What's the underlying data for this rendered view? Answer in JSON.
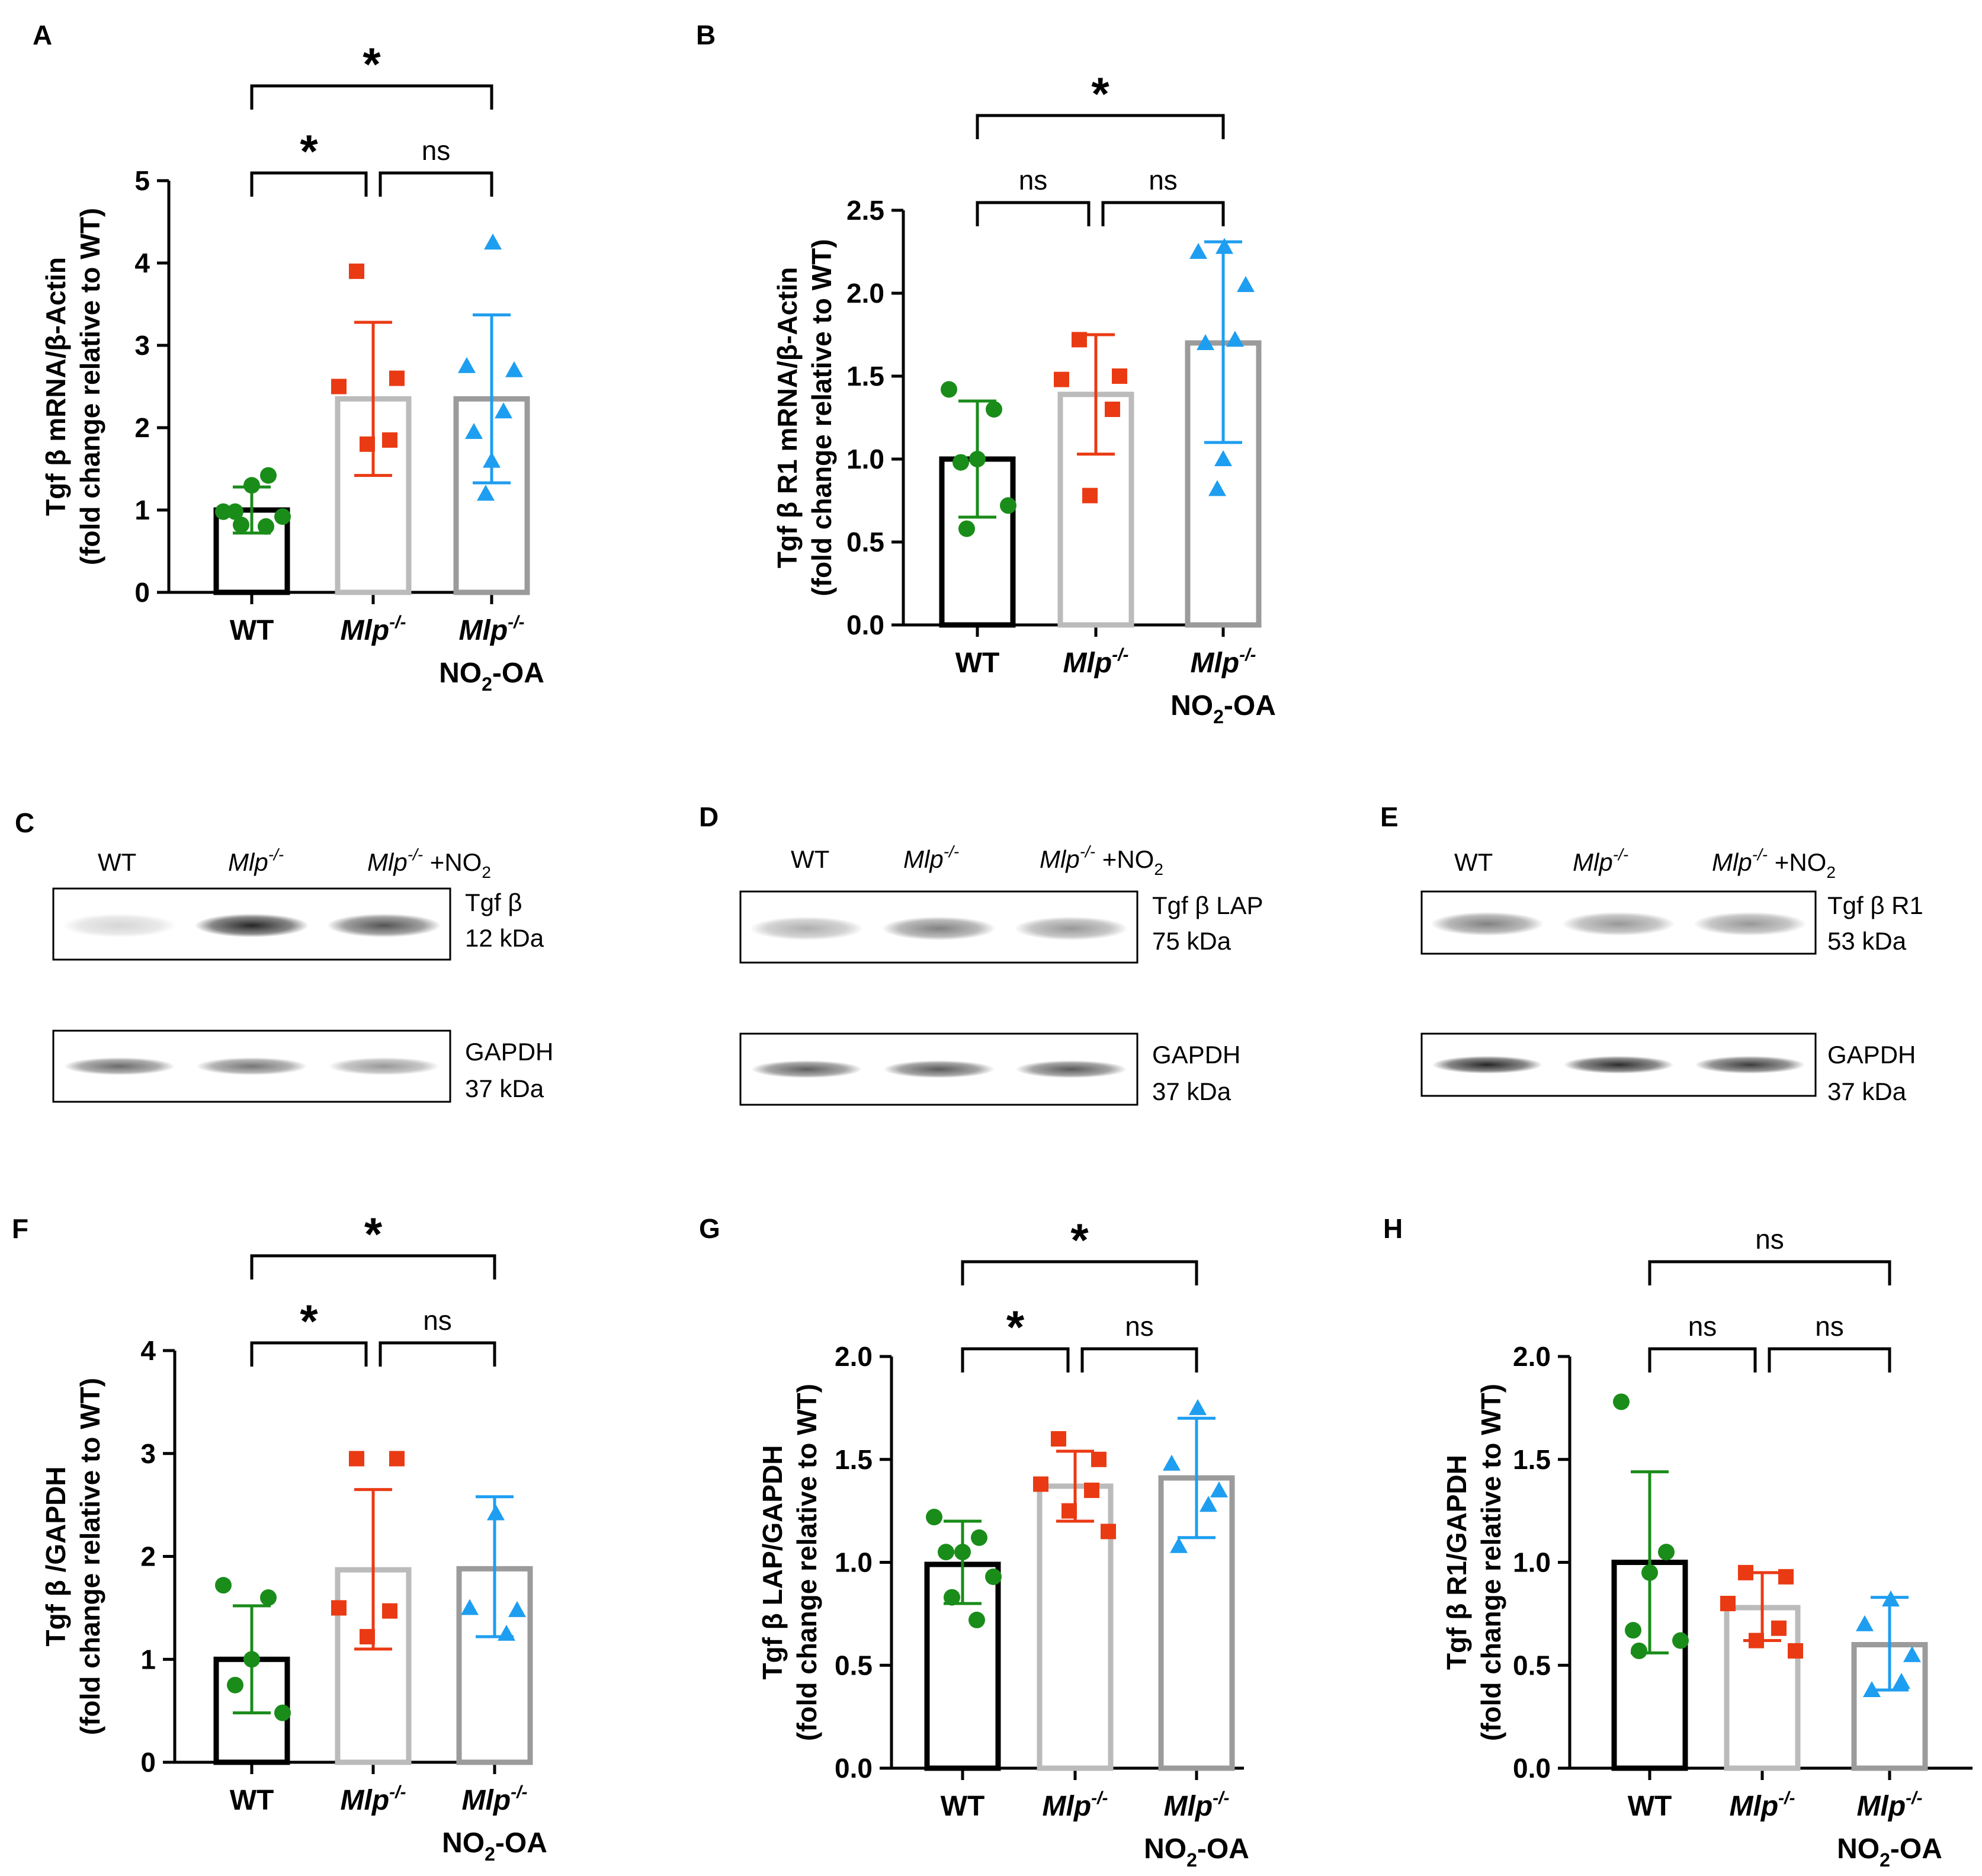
{
  "colors": {
    "WT": "#1a8c1a",
    "Mlp": "#ea3a14",
    "NO2": "#1e9ef0",
    "bar_WT": "#000000",
    "bar_Mlp": "#bbbbbb",
    "bar_NO2": "#9b9b9b",
    "blot_band": "#1a1a1a"
  },
  "groups": {
    "wt": "WT",
    "mlp_italic": "Mlp",
    "mlp_sup": "-/-",
    "no2_line": {
      "pre": "NO",
      "sub": "2",
      "post": "-OA"
    }
  },
  "chart_data": [
    {
      "panel": "A",
      "type": "bar",
      "ylabel": [
        "Tgf β mRNA/β-Actin",
        "(fold change relative to WT)"
      ],
      "ylim": [
        0,
        5
      ],
      "ticks": [
        "0",
        "1",
        "2",
        "3",
        "4",
        "5"
      ],
      "tick_values": [
        0,
        1,
        2,
        3,
        4,
        5
      ],
      "categories": [
        "WT",
        "Mlp-/-",
        "Mlp-/- NO2-OA"
      ],
      "values": [
        1.0,
        2.35,
        2.35
      ],
      "sd_low": [
        0.72,
        1.42,
        1.33
      ],
      "sd_high": [
        1.28,
        3.28,
        3.37
      ],
      "points": [
        [
          0.98,
          1.42,
          1.3,
          0.98,
          0.92,
          0.82,
          0.8
        ],
        [
          3.9,
          2.6,
          2.5,
          1.85,
          1.8
        ],
        [
          4.25,
          2.75,
          2.7,
          2.2,
          1.95,
          1.6,
          1.2
        ]
      ],
      "significance": [
        {
          "pair": [
            0,
            1
          ],
          "label": "*"
        },
        {
          "pair": [
            1,
            2
          ],
          "label": "ns"
        },
        {
          "pair": [
            0,
            2
          ],
          "label": "*"
        }
      ]
    },
    {
      "panel": "B",
      "type": "bar",
      "ylabel": [
        "Tgf β R1 mRNA/β-Actin",
        "(fold change relative to WT)"
      ],
      "ylim": [
        0,
        2.5
      ],
      "ticks": [
        "0.0",
        "0.5",
        "1.0",
        "1.5",
        "2.0",
        "2.5"
      ],
      "tick_values": [
        0,
        0.5,
        1.0,
        1.5,
        2.0,
        2.5
      ],
      "categories": [
        "WT",
        "Mlp-/-",
        "Mlp-/- NO2-OA"
      ],
      "values": [
        1.0,
        1.39,
        1.7
      ],
      "sd_low": [
        0.65,
        1.03,
        1.1
      ],
      "sd_high": [
        1.35,
        1.75,
        2.31
      ],
      "points": [
        [
          1.42,
          1.3,
          1.0,
          0.98,
          0.72,
          0.58
        ],
        [
          1.72,
          1.5,
          1.48,
          1.3,
          0.78
        ],
        [
          2.28,
          2.25,
          2.05,
          1.72,
          1.7,
          1.0,
          0.82
        ]
      ],
      "significance": [
        {
          "pair": [
            0,
            1
          ],
          "label": "ns"
        },
        {
          "pair": [
            1,
            2
          ],
          "label": "ns"
        },
        {
          "pair": [
            0,
            2
          ],
          "label": "*"
        }
      ]
    },
    {
      "panel": "F",
      "type": "bar",
      "ylabel": [
        "Tgf β /GAPDH",
        "(fold change relative to WT)"
      ],
      "ylim": [
        0,
        4
      ],
      "ticks": [
        "0",
        "1",
        "2",
        "3",
        "4"
      ],
      "tick_values": [
        0,
        1,
        2,
        3,
        4
      ],
      "categories": [
        "WT",
        "Mlp-/-",
        "Mlp-/- NO2-OA"
      ],
      "values": [
        1.0,
        1.87,
        1.88
      ],
      "sd_low": [
        0.48,
        1.1,
        1.22
      ],
      "sd_high": [
        1.52,
        2.65,
        2.58
      ],
      "points": [
        [
          1.72,
          1.6,
          1.0,
          0.75,
          0.48
        ],
        [
          2.95,
          2.95,
          1.5,
          1.47,
          1.22
        ],
        [
          2.42,
          1.5,
          1.48,
          1.25
        ]
      ],
      "significance": [
        {
          "pair": [
            0,
            1
          ],
          "label": "*"
        },
        {
          "pair": [
            1,
            2
          ],
          "label": "ns"
        },
        {
          "pair": [
            0,
            2
          ],
          "label": "*"
        }
      ]
    },
    {
      "panel": "G",
      "type": "bar",
      "ylabel": [
        "Tgf β LAP/GAPDH",
        "(fold change relative to WT)"
      ],
      "ylim": [
        0,
        2.0
      ],
      "ticks": [
        "0.0",
        "0.5",
        "1.0",
        "1.5",
        "2.0"
      ],
      "tick_values": [
        0,
        0.5,
        1.0,
        1.5,
        2.0
      ],
      "categories": [
        "WT",
        "Mlp-/-",
        "Mlp-/- NO2-OA"
      ],
      "values": [
        0.99,
        1.37,
        1.41
      ],
      "sd_low": [
        0.8,
        1.2,
        1.12
      ],
      "sd_high": [
        1.2,
        1.54,
        1.7
      ],
      "points": [
        [
          1.22,
          1.12,
          1.05,
          1.05,
          0.93,
          0.83,
          0.72
        ],
        [
          1.6,
          1.5,
          1.38,
          1.35,
          1.25,
          1.15
        ],
        [
          1.75,
          1.48,
          1.35,
          1.28,
          1.08
        ]
      ],
      "significance": [
        {
          "pair": [
            0,
            1
          ],
          "label": "*"
        },
        {
          "pair": [
            1,
            2
          ],
          "label": "ns"
        },
        {
          "pair": [
            0,
            2
          ],
          "label": "*"
        }
      ]
    },
    {
      "panel": "H",
      "type": "bar",
      "ylabel": [
        "Tgf β R1/GAPDH",
        "(fold change relative to WT)"
      ],
      "ylim": [
        0,
        2.0
      ],
      "ticks": [
        "0.0",
        "0.5",
        "1.0",
        "1.5",
        "2.0"
      ],
      "tick_values": [
        0,
        0.5,
        1.0,
        1.5,
        2.0
      ],
      "categories": [
        "WT",
        "Mlp-/-",
        "Mlp-/- NO2-OA"
      ],
      "values": [
        1.0,
        0.78,
        0.6
      ],
      "sd_low": [
        0.56,
        0.62,
        0.38
      ],
      "sd_high": [
        1.44,
        0.95,
        0.83
      ],
      "points": [
        [
          1.78,
          1.05,
          0.95,
          0.67,
          0.62,
          0.57
        ],
        [
          0.95,
          0.93,
          0.8,
          0.68,
          0.62,
          0.57
        ],
        [
          0.82,
          0.7,
          0.55,
          0.42,
          0.38
        ]
      ],
      "significance": [
        {
          "pair": [
            0,
            1
          ],
          "label": "ns"
        },
        {
          "pair": [
            1,
            2
          ],
          "label": "ns"
        },
        {
          "pair": [
            0,
            2
          ],
          "label": "ns"
        }
      ]
    }
  ],
  "blots": [
    {
      "panel": "C",
      "lanes": [
        "WT",
        "Mlp",
        "Mlp"
      ],
      "lane3_suffix": " +NO",
      "lane3_sub": "2",
      "target": "Tgf β",
      "target_kda": "12 kDa",
      "target_intensity": [
        0.18,
        0.95,
        0.75
      ],
      "control": "GAPDH",
      "control_kda": "37 kDa",
      "control_intensity": [
        0.65,
        0.6,
        0.45
      ]
    },
    {
      "panel": "D",
      "lanes": [
        "WT",
        "Mlp",
        "Mlp"
      ],
      "lane3_suffix": " +NO",
      "lane3_sub": "2",
      "target": "Tgf β LAP",
      "target_kda": "75 kDa",
      "target_intensity": [
        0.35,
        0.55,
        0.45
      ],
      "control": "GAPDH",
      "control_kda": "37 kDa",
      "control_intensity": [
        0.7,
        0.72,
        0.72
      ]
    },
    {
      "panel": "E",
      "lanes": [
        "WT",
        "Mlp",
        "Mlp"
      ],
      "lane3_suffix": " +NO",
      "lane3_sub": "2",
      "target": "Tgf β R1",
      "target_kda": "53 kDa",
      "target_intensity": [
        0.55,
        0.45,
        0.45
      ],
      "control": "GAPDH",
      "control_kda": "37 kDa",
      "control_intensity": [
        0.95,
        0.92,
        0.85
      ]
    }
  ]
}
